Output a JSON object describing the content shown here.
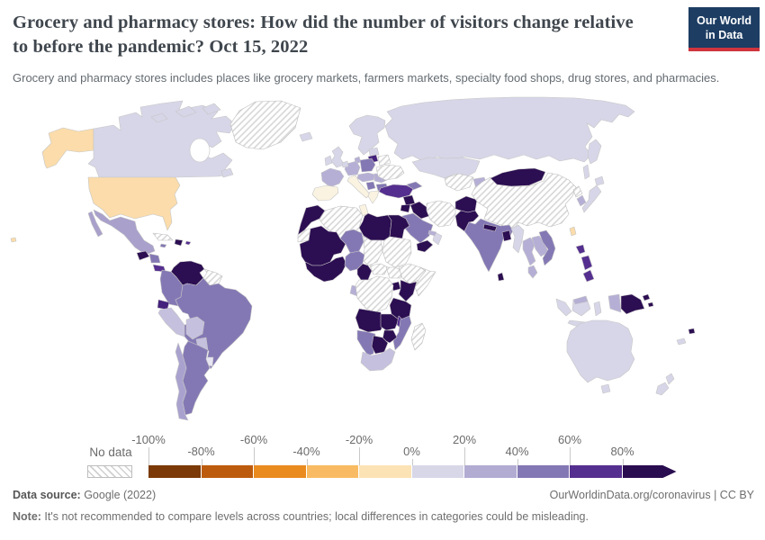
{
  "header": {
    "title": "Grocery and pharmacy stores: How did the number of visitors change relative to before the pandemic? Oct 15, 2022",
    "subtitle": "Grocery and pharmacy stores includes places like grocery markets, farmers markets, specialty food shops, drug stores, and pharmacies.",
    "logo": {
      "line1": "Our World",
      "line2": "in Data",
      "bg": "#1d3d63",
      "accent": "#d0353d"
    }
  },
  "legend": {
    "no_data_label": "No data",
    "ticks": [
      {
        "label": "-100%",
        "row": "top"
      },
      {
        "label": "-80%",
        "row": "bottom"
      },
      {
        "label": "-60%",
        "row": "top"
      },
      {
        "label": "-40%",
        "row": "bottom"
      },
      {
        "label": "-20%",
        "row": "top"
      },
      {
        "label": "0%",
        "row": "bottom"
      },
      {
        "label": "20%",
        "row": "top"
      },
      {
        "label": "40%",
        "row": "bottom"
      },
      {
        "label": "60%",
        "row": "top"
      },
      {
        "label": "80%",
        "row": "bottom"
      }
    ],
    "segment_colors": [
      "#7b3a07",
      "#bc5b0d",
      "#ea8b20",
      "#f8bb63",
      "#fce3b5",
      "#d8d7e8",
      "#b2abd2",
      "#8478b4",
      "#552f8f"
    ],
    "arrow_color": "#2a0d50"
  },
  "footer": {
    "source_label": "Data source:",
    "source_value": " Google (2022)",
    "site": "OurWorldinData.org/coronavirus | CC BY",
    "note_label": "Note:",
    "note_value": " It's not recommended to compare levels across countries; local differences in categories could be misleading."
  },
  "chart_data": {
    "type": "choropleth",
    "title": "Grocery and pharmacy stores: change in visitors relative to before the pandemic",
    "date": "Oct 15, 2022",
    "unit": "%",
    "scale": {
      "ticks": [
        -100,
        -80,
        -60,
        -40,
        -20,
        0,
        20,
        40,
        60,
        80
      ],
      "over_bucket": ">80%",
      "no_data": "hatched"
    },
    "palette": {
      "cream": {
        "hex": "#fbdcaa",
        "bucket": "-20% to 0%"
      },
      "white0": {
        "hex": "#faf3e1",
        "bucket": "around 0%"
      },
      "lav": {
        "hex": "#d7d6e8",
        "bucket": "0% to 20%"
      },
      "vlight": {
        "hex": "#e7e5f1",
        "bucket": "0% to 20%"
      },
      "lp": {
        "hex": "#b6afd5",
        "bucket": "20% to 40%"
      },
      "lp2": {
        "hex": "#c5c0de",
        "bucket": "20% to 40%"
      },
      "lpm": {
        "hex": "#aaa2ce",
        "bucket": "20% to 40%"
      },
      "ml": {
        "hex": "#a9a0cb",
        "bucket": "20% to 40%"
      },
      "mp": {
        "hex": "#8478b4",
        "bucket": "40% to 60%"
      },
      "pp": {
        "hex": "#552f8f",
        "bucket": "60% to 80%"
      },
      "ed": {
        "hex": "#44217c",
        "bucket": "60% to 80%"
      },
      "xd": {
        "hex": "#2c0e52",
        "bucket": ">80%"
      },
      "hatch": {
        "hex": "hatch",
        "bucket": "No data"
      }
    },
    "regions": [
      {
        "id": "hawaii",
        "key": "cream"
      },
      {
        "id": "alaska",
        "key": "cream"
      },
      {
        "id": "usa",
        "key": "cream"
      },
      {
        "id": "canada",
        "key": "lav"
      },
      {
        "id": "greenland",
        "key": "hatch"
      },
      {
        "id": "iceland",
        "key": "lav"
      },
      {
        "id": "mexico",
        "key": "ml"
      },
      {
        "id": "guatemala",
        "key": "xd"
      },
      {
        "id": "honduras-nicaragua",
        "key": "mp"
      },
      {
        "id": "costa-rica-panama",
        "key": "pp"
      },
      {
        "id": "cuba",
        "key": "hatch"
      },
      {
        "id": "hispaniola",
        "key": "xd"
      },
      {
        "id": "jamaica",
        "key": "mp"
      },
      {
        "id": "puerto-rico",
        "key": "pp"
      },
      {
        "id": "venezuela",
        "key": "xd"
      },
      {
        "id": "guyanas",
        "key": "hatch"
      },
      {
        "id": "colombia",
        "key": "mp"
      },
      {
        "id": "ecuador",
        "key": "ed"
      },
      {
        "id": "peru",
        "key": "lp2"
      },
      {
        "id": "brazil",
        "key": "mp"
      },
      {
        "id": "bolivia",
        "key": "lp2"
      },
      {
        "id": "paraguay",
        "key": "lp2"
      },
      {
        "id": "uruguay",
        "key": "vlight"
      },
      {
        "id": "argentina",
        "key": "mp"
      },
      {
        "id": "chile",
        "key": "lpm"
      },
      {
        "id": "uk",
        "key": "lav"
      },
      {
        "id": "ireland",
        "key": "lav"
      },
      {
        "id": "scandinavia",
        "key": "lav"
      },
      {
        "id": "denmark",
        "key": "lp"
      },
      {
        "id": "estonia-latvia",
        "key": "lav"
      },
      {
        "id": "lithuania",
        "key": "ed"
      },
      {
        "id": "belarus",
        "key": "hatch"
      },
      {
        "id": "poland",
        "key": "mp"
      },
      {
        "id": "germany",
        "key": "lp"
      },
      {
        "id": "benelux",
        "key": "lav"
      },
      {
        "id": "france",
        "key": "lp"
      },
      {
        "id": "spain-portugal",
        "key": "white0"
      },
      {
        "id": "italy",
        "key": "white0"
      },
      {
        "id": "czech-austria-hungary",
        "key": "lp"
      },
      {
        "id": "romania",
        "key": "lp"
      },
      {
        "id": "serbia",
        "key": "mp"
      },
      {
        "id": "bulgaria",
        "key": "mp"
      },
      {
        "id": "greece",
        "key": "white0"
      },
      {
        "id": "ukraine",
        "key": "hatch"
      },
      {
        "id": "russia",
        "key": "lav"
      },
      {
        "id": "kazakhstan",
        "key": "lav"
      },
      {
        "id": "caucasus",
        "key": "mp"
      },
      {
        "id": "turkey",
        "key": "pp"
      },
      {
        "id": "syria",
        "key": "xd"
      },
      {
        "id": "iraq",
        "key": "xd"
      },
      {
        "id": "iran",
        "key": "hatch"
      },
      {
        "id": "israel-jordan",
        "key": "xd"
      },
      {
        "id": "saudi-arabia",
        "key": "mp"
      },
      {
        "id": "yemen",
        "key": "xd"
      },
      {
        "id": "oman",
        "key": "lav"
      },
      {
        "id": "uae",
        "key": "lp"
      },
      {
        "id": "turkmenistan-uzbekistan",
        "key": "hatch"
      },
      {
        "id": "kyrgyzstan-tajikistan",
        "key": "lp"
      },
      {
        "id": "afghanistan",
        "key": "xd"
      },
      {
        "id": "pakistan",
        "key": "xd"
      },
      {
        "id": "india",
        "key": "mp"
      },
      {
        "id": "nepal",
        "key": "xd"
      },
      {
        "id": "bangladesh",
        "key": "xd"
      },
      {
        "id": "sri-lanka",
        "key": "xd"
      },
      {
        "id": "myanmar",
        "key": "lav"
      },
      {
        "id": "thailand",
        "key": "lp"
      },
      {
        "id": "laos-cambodia",
        "key": "lp"
      },
      {
        "id": "vietnam",
        "key": "mp"
      },
      {
        "id": "malaysia",
        "key": "lp"
      },
      {
        "id": "china",
        "key": "hatch"
      },
      {
        "id": "mongolia",
        "key": "xd"
      },
      {
        "id": "north-korea",
        "key": "hatch"
      },
      {
        "id": "south-korea",
        "key": "lp"
      },
      {
        "id": "japan",
        "key": "lav"
      },
      {
        "id": "taiwan",
        "key": "cream"
      },
      {
        "id": "philippines",
        "key": "pp"
      },
      {
        "id": "sumatra",
        "key": "lav"
      },
      {
        "id": "borneo",
        "key": "lav"
      },
      {
        "id": "borneo-malaysia",
        "key": "lp"
      },
      {
        "id": "sulawesi",
        "key": "lav"
      },
      {
        "id": "java",
        "key": "lav"
      },
      {
        "id": "lesser-sunda",
        "key": "lav"
      },
      {
        "id": "west-papua",
        "key": "lp"
      },
      {
        "id": "papua-new-guinea",
        "key": "xd"
      },
      {
        "id": "solomon-islands",
        "key": "xd"
      },
      {
        "id": "fiji",
        "key": "xd"
      },
      {
        "id": "new-caledonia",
        "key": "lav"
      },
      {
        "id": "australia",
        "key": "lav"
      },
      {
        "id": "tasmania",
        "key": "lav"
      },
      {
        "id": "new-zealand",
        "key": "lav"
      },
      {
        "id": "morocco",
        "key": "xd"
      },
      {
        "id": "western-sahara",
        "key": "hatch"
      },
      {
        "id": "algeria",
        "key": "hatch"
      },
      {
        "id": "tunisia",
        "key": "white0"
      },
      {
        "id": "libya",
        "key": "xd"
      },
      {
        "id": "egypt",
        "key": "xd"
      },
      {
        "id": "mauritania-mali",
        "key": "xd"
      },
      {
        "id": "ivory-ghana-burkina",
        "key": "xd"
      },
      {
        "id": "niger",
        "key": "mp"
      },
      {
        "id": "chad",
        "key": "hatch"
      },
      {
        "id": "sudan",
        "key": "hatch"
      },
      {
        "id": "nigeria",
        "key": "mp"
      },
      {
        "id": "cameroon",
        "key": "xd"
      },
      {
        "id": "central-african-republic",
        "key": "hatch"
      },
      {
        "id": "south-sudan",
        "key": "hatch"
      },
      {
        "id": "ethiopia",
        "key": "hatch"
      },
      {
        "id": "somalia",
        "key": "hatch"
      },
      {
        "id": "uganda",
        "key": "xd"
      },
      {
        "id": "kenya",
        "key": "xd"
      },
      {
        "id": "tanzania",
        "key": "xd"
      },
      {
        "id": "gabon-congo",
        "key": "lp"
      },
      {
        "id": "drc",
        "key": "hatch"
      },
      {
        "id": "angola",
        "key": "xd"
      },
      {
        "id": "zambia",
        "key": "xd"
      },
      {
        "id": "malawi",
        "key": "pp"
      },
      {
        "id": "mozambique",
        "key": "mp"
      },
      {
        "id": "zimbabwe",
        "key": "xd"
      },
      {
        "id": "namibia",
        "key": "mp"
      },
      {
        "id": "botswana",
        "key": "xd"
      },
      {
        "id": "south-africa",
        "key": "lp2"
      },
      {
        "id": "madagascar",
        "key": "hatch"
      }
    ]
  }
}
